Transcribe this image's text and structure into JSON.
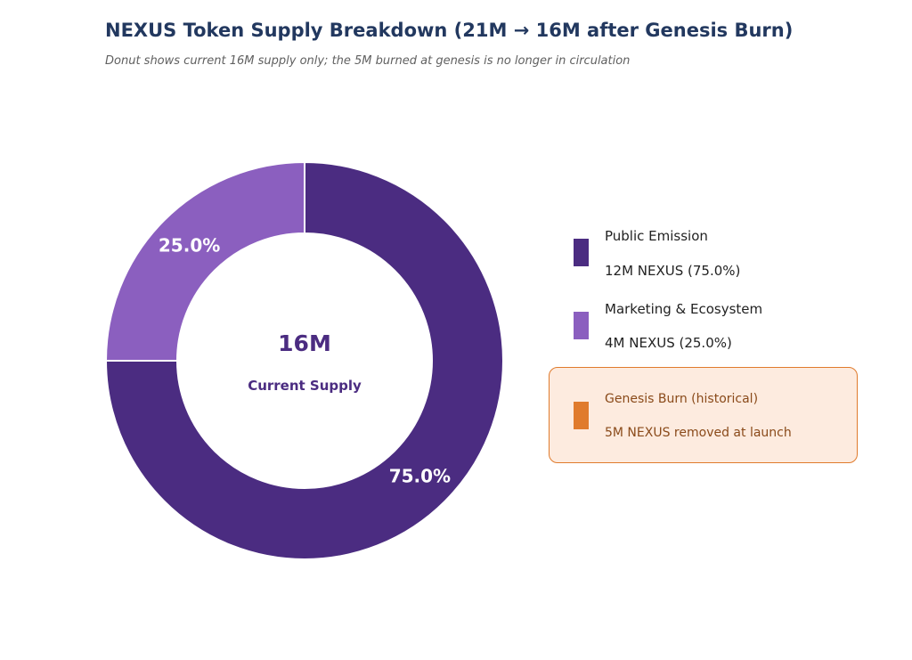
{
  "title": "NEXUS Token Supply Breakdown (21M → 16M after Genesis Burn)",
  "subtitle": "Donut shows current 16M supply only; the 5M burned at genesis is no longer in circulation",
  "center": {
    "value": "16M",
    "label": "Current Supply"
  },
  "colors": {
    "public_emission": "#4b2c81",
    "marketing": "#8b5fbf",
    "burn": "#e07b2d",
    "center_text": "#4b2c81"
  },
  "legend": {
    "public_emission": {
      "name": "Public Emission",
      "detail": "12M NEXUS (75.0%)"
    },
    "marketing": {
      "name": "Marketing & Ecosystem",
      "detail": "4M NEXUS (25.0%)"
    },
    "burn": {
      "name": "Genesis Burn (historical)",
      "detail": "5M NEXUS removed at launch"
    }
  },
  "chart_data": {
    "type": "pie",
    "donut": true,
    "title": "NEXUS Token Supply Breakdown (21M → 16M after Genesis Burn)",
    "subtitle": "Donut shows current 16M supply only; the 5M burned at genesis is no longer in circulation",
    "unit": "M NEXUS",
    "total": 16,
    "slices": [
      {
        "label": "Public Emission",
        "value": 12,
        "percent_label": "75.0%",
        "color": "#4b2c81"
      },
      {
        "label": "Marketing & Ecosystem",
        "value": 4,
        "percent_label": "25.0%",
        "color": "#8b5fbf"
      }
    ],
    "excluded": {
      "label": "Genesis Burn (historical)",
      "value": 5,
      "color": "#e07b2d"
    },
    "legend_position": "right"
  }
}
